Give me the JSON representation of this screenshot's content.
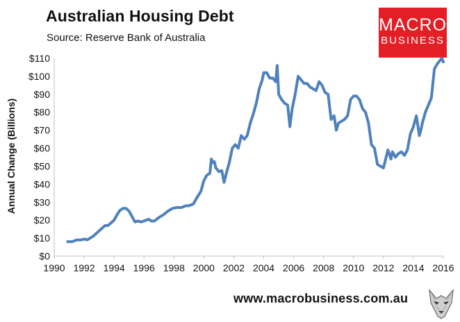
{
  "header": {
    "title": "Australian Housing Debt",
    "source": "Source: Reserve Bank of Australia"
  },
  "logo": {
    "line1": "MACRO",
    "line2": "BUSINESS",
    "color": "#e31e25"
  },
  "footer": {
    "url": "www.macrobusiness.com.au",
    "mascot_icon": "wolf-icon"
  },
  "chart_data": {
    "type": "line",
    "title": "Australian Housing Debt",
    "xlabel": "",
    "ylabel": "Annual Change (Billions)",
    "xlim": [
      1990,
      2016
    ],
    "ylim": [
      0,
      110
    ],
    "grid": false,
    "line_color": "#4f81bd",
    "x_ticks": [
      1990,
      1992,
      1994,
      1996,
      1998,
      2000,
      2002,
      2004,
      2006,
      2008,
      2010,
      2012,
      2014,
      2016
    ],
    "x_tick_labels": [
      "1990",
      "1992",
      "1994",
      "1996",
      "1998",
      "2000",
      "2002",
      "2004",
      "2006",
      "2008",
      "2010",
      "2012",
      "2014",
      "2016"
    ],
    "y_ticks": [
      0,
      10,
      20,
      30,
      40,
      50,
      60,
      70,
      80,
      90,
      100,
      110
    ],
    "y_tick_labels": [
      "$0",
      "$10",
      "$20",
      "$30",
      "$40",
      "$50",
      "$60",
      "$70",
      "$80",
      "$90",
      "$100",
      "$110"
    ],
    "series": [
      {
        "x": [
          1990.9,
          1991.2,
          1991.5,
          1991.8,
          1992.0,
          1992.2,
          1992.4,
          1992.6,
          1992.8,
          1993.0,
          1993.2,
          1993.4,
          1993.6,
          1993.8,
          1994.0,
          1994.2,
          1994.4,
          1994.6,
          1994.8,
          1995.0,
          1995.2,
          1995.4,
          1995.6,
          1995.8,
          1996.0,
          1996.3,
          1996.5,
          1996.7,
          1997.0,
          1997.3,
          1997.6,
          1997.9,
          1998.2,
          1998.5,
          1998.8,
          1999.0,
          1999.3,
          1999.5,
          1999.8,
          2000.0,
          2000.2,
          2000.4,
          2000.5,
          2000.6,
          2000.7,
          2000.8,
          2001.0,
          2001.2,
          2001.35,
          2001.5,
          2001.7,
          2001.9,
          2002.1,
          2002.3,
          2002.5,
          2002.7,
          2002.9,
          2003.1,
          2003.3,
          2003.5,
          2003.7,
          2003.9,
          2004.0,
          2004.2,
          2004.4,
          2004.6,
          2004.8,
          2004.9,
          2005.0,
          2005.2,
          2005.4,
          2005.6,
          2005.75,
          2005.9,
          2006.1,
          2006.3,
          2006.5,
          2006.7,
          2006.9,
          2007.1,
          2007.3,
          2007.5,
          2007.7,
          2007.9,
          2008.1,
          2008.3,
          2008.5,
          2008.7,
          2008.85,
          2009.0,
          2009.2,
          2009.4,
          2009.6,
          2009.8,
          2010.0,
          2010.2,
          2010.4,
          2010.6,
          2010.8,
          2011.0,
          2011.2,
          2011.4,
          2011.6,
          2011.8,
          2012.0,
          2012.3,
          2012.5,
          2012.6,
          2012.8,
          2013.0,
          2013.2,
          2013.4,
          2013.6,
          2013.8,
          2014.0,
          2014.2,
          2014.4,
          2014.5,
          2014.6,
          2014.8,
          2015.0,
          2015.2,
          2015.4,
          2015.6,
          2015.8,
          2015.9,
          2016.0
        ],
        "y": [
          8,
          8,
          9,
          9,
          9.5,
          9,
          10,
          11,
          12.5,
          14,
          15.5,
          17,
          17,
          18.5,
          20,
          23,
          25.5,
          26.5,
          26.5,
          25,
          22,
          19,
          19.5,
          19,
          19.5,
          20.5,
          19.5,
          19.5,
          21.5,
          23,
          25,
          26.5,
          27,
          27,
          28,
          28,
          29,
          32,
          36,
          42,
          45,
          46,
          54,
          52,
          52.5,
          49,
          47,
          47.5,
          41,
          46,
          52,
          60,
          62,
          60,
          67,
          65,
          67,
          74,
          79,
          85,
          93,
          98,
          102,
          102,
          99,
          99,
          97,
          106,
          90,
          87,
          85,
          84,
          72,
          82,
          90,
          100,
          98,
          96,
          96,
          94,
          93,
          92,
          97,
          95,
          91,
          90,
          76,
          78,
          70,
          74,
          75,
          76,
          78,
          87,
          89,
          89,
          87,
          82,
          80,
          74,
          62,
          60,
          51,
          50,
          49,
          59,
          54,
          58,
          55,
          57,
          58,
          56,
          59,
          68,
          72,
          78,
          67,
          70,
          74,
          80,
          84,
          88,
          104,
          107,
          109,
          110,
          108
        ]
      }
    ]
  }
}
